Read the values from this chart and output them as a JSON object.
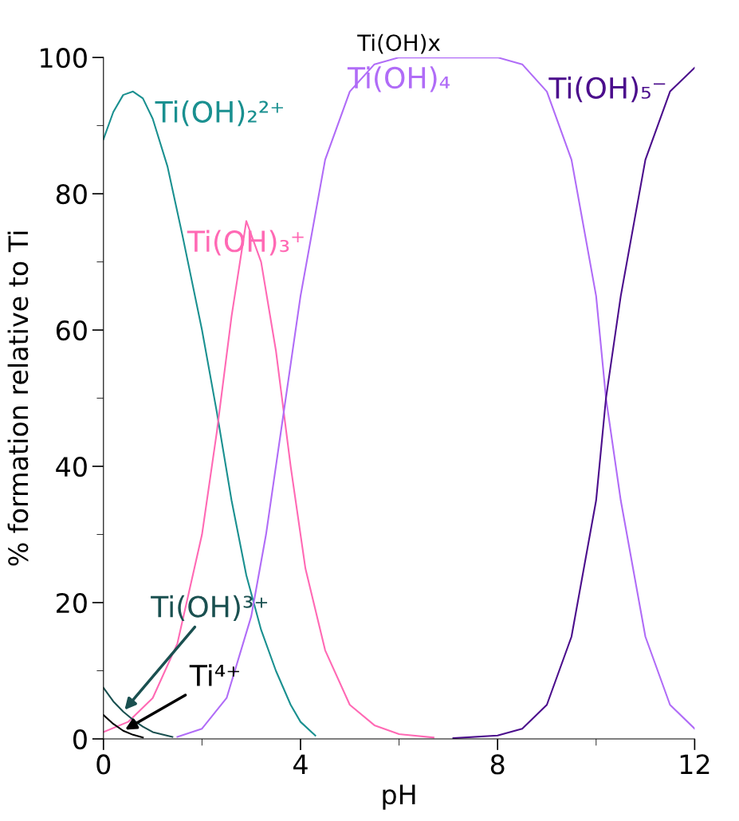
{
  "chart_data": {
    "type": "line",
    "title": "Ti(OH)x",
    "xlabel": "pH",
    "ylabel": "% formation relative to Ti",
    "xlim": [
      0,
      12
    ],
    "ylim": [
      0,
      100
    ],
    "xticks": [
      0,
      4,
      8,
      12
    ],
    "yticks": [
      0,
      20,
      40,
      60,
      80,
      100
    ],
    "grid": false,
    "legend": false,
    "marker": "none",
    "line_style": "solid",
    "series": [
      {
        "name": "Ti(OH)₂²⁺",
        "color": "#1a9090",
        "x": [
          0,
          0.2,
          0.4,
          0.6,
          0.8,
          1.0,
          1.3,
          1.6,
          2.0,
          2.3,
          2.6,
          2.9,
          3.2,
          3.5,
          3.8,
          4.0,
          4.3
        ],
        "values": [
          88,
          92,
          94.5,
          95,
          94,
          91,
          84,
          74,
          60,
          48,
          35,
          24,
          16,
          10,
          5,
          2.5,
          0.5
        ]
      },
      {
        "name": "Ti(OH)₃⁺",
        "color": "#ff69b4",
        "x": [
          0,
          0.5,
          1,
          1.5,
          2,
          2.3,
          2.6,
          2.9,
          3.2,
          3.5,
          3.8,
          4.1,
          4.5,
          5,
          5.5,
          6,
          6.7
        ],
        "values": [
          1,
          2.5,
          6,
          14,
          30,
          45,
          62,
          76,
          70,
          57,
          40,
          25,
          13,
          5,
          2,
          0.7,
          0.2
        ]
      },
      {
        "name": "Ti(OH)₄",
        "color": "#b06cf7",
        "x": [
          1.5,
          2,
          2.5,
          3,
          3.3,
          3.7,
          4,
          4.5,
          5,
          5.5,
          6,
          8,
          8.5,
          9,
          9.5,
          10,
          10.2,
          10.5,
          11,
          11.5,
          12
        ],
        "values": [
          0.3,
          1.5,
          6,
          18,
          30,
          50,
          65,
          85,
          95,
          99,
          100,
          100,
          99,
          95,
          85,
          65,
          50,
          35,
          15,
          5,
          1.5
        ]
      },
      {
        "name": "Ti(OH)₅⁻",
        "color": "#4b0d8c",
        "x": [
          7.1,
          8,
          8.5,
          9,
          9.5,
          10,
          10.2,
          10.5,
          11,
          11.5,
          12
        ],
        "values": [
          0.1,
          0.5,
          1.5,
          5,
          15,
          35,
          50,
          65,
          85,
          95,
          98.5
        ]
      },
      {
        "name": "Ti(OH)³⁺",
        "color": "#1a5050",
        "x": [
          0,
          0.2,
          0.4,
          0.6,
          0.8,
          1.0,
          1.4
        ],
        "values": [
          7.5,
          5.5,
          4,
          2.8,
          1.8,
          1,
          0.3
        ]
      },
      {
        "name": "Ti⁴⁺",
        "color": "#000000",
        "x": [
          0,
          0.2,
          0.4,
          0.6,
          0.8
        ],
        "values": [
          3.5,
          2.2,
          1.2,
          0.6,
          0.2
        ]
      }
    ]
  }
}
